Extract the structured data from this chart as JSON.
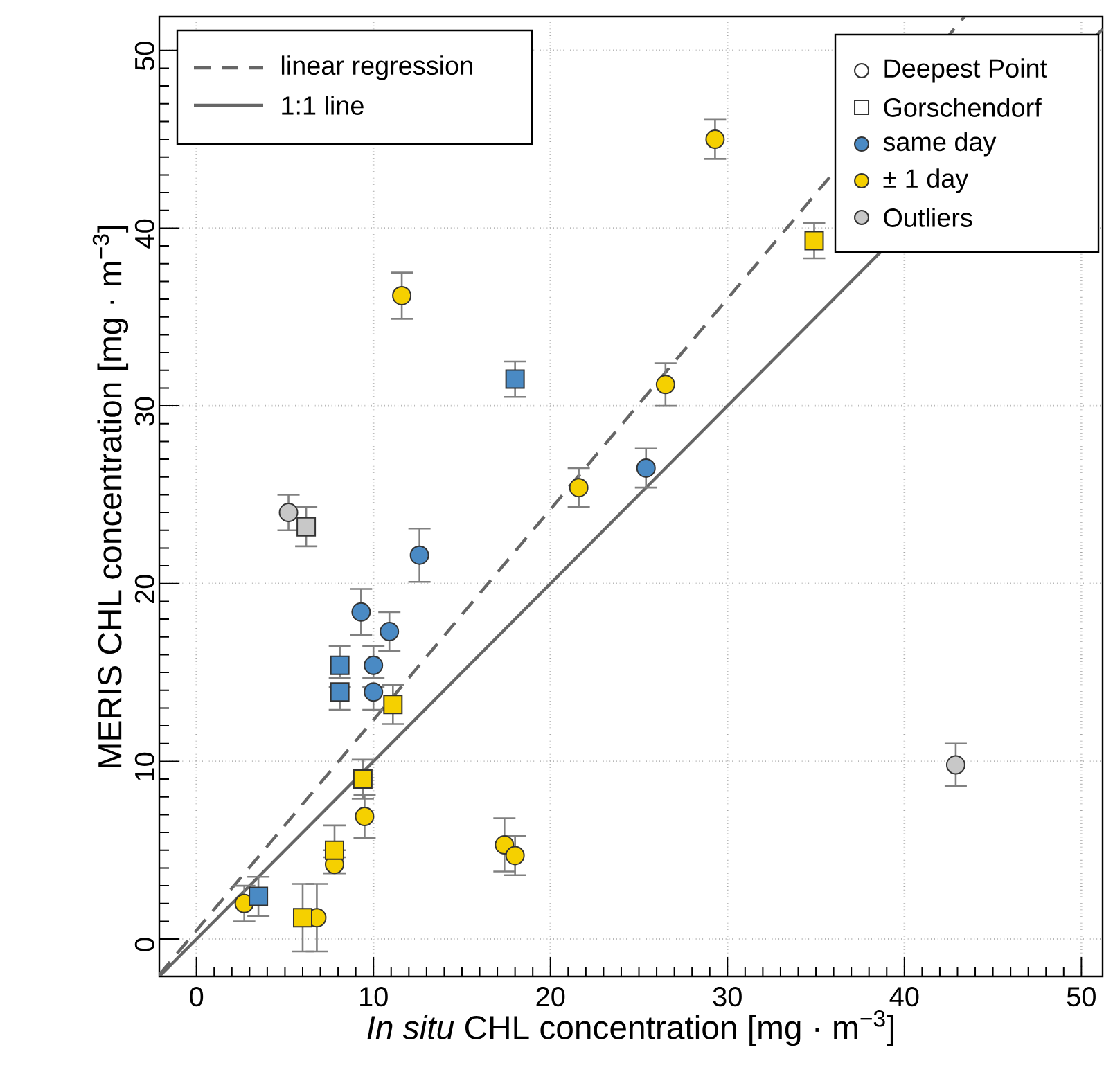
{
  "chart_data": {
    "type": "scatter",
    "xlabel": "*In situ* CHL concentration [mg · m$^{−3}$]",
    "ylabel": "MERIS CHL concentration [mg · m$^{−3}$]",
    "xlim": [
      -2.1,
      51.2
    ],
    "ylim": [
      -2.1,
      51.9
    ],
    "xticks": [
      0,
      10,
      20,
      30,
      40,
      50
    ],
    "yticks": [
      0,
      10,
      20,
      30,
      40,
      50
    ],
    "grid": true,
    "legend": "top",
    "annotations": [
      "Deepest Point",
      "Gorschendorf"
    ],
    "series": [
      {
        "name": "linear regression",
        "type": "line",
        "line_style": "dashed",
        "color": "#666666",
        "x": [
          -2.1,
          43.4
        ],
        "values": [
          -2.0,
          51.9
        ]
      },
      {
        "name": "1:1 line",
        "type": "line",
        "line_style": "solid",
        "color": "#666666",
        "x": [
          -2.1,
          51.2
        ],
        "values": [
          -2.1,
          51.2
        ]
      },
      {
        "name": "same day",
        "marker": "circle",
        "color": "#4a8ac4",
        "x": [
          12.6,
          9.3,
          10.9,
          10.0,
          10.0,
          25.4
        ],
        "values": [
          21.6,
          18.4,
          17.3,
          15.4,
          13.9,
          26.5
        ],
        "errors": [
          1.5,
          1.3,
          1.1,
          [
            14.7,
            16.5
          ],
          [
            12.9,
            14.2
          ],
          1.1
        ]
      },
      {
        "name": "± 1 day",
        "marker": "circle",
        "color": "#f5d000",
        "x": [
          9.5,
          7.8,
          2.7,
          6.8,
          11.6,
          26.5,
          21.6,
          17.4,
          18.0,
          29.3
        ],
        "values": [
          6.9,
          4.2,
          2.0,
          1.2,
          36.2,
          31.2,
          25.4,
          5.3,
          4.7,
          45.0
        ],
        "errors": [
          1.2,
          [
            3.7,
            4.6
          ],
          1.0,
          1.9,
          1.3,
          1.2,
          1.1,
          1.5,
          1.1,
          1.1
        ]
      },
      {
        "name": "Outliers",
        "marker": "circle",
        "color": "#c8c8c8",
        "x": [
          5.2,
          42.9
        ],
        "values": [
          24.0,
          9.8
        ],
        "errors": [
          1.0,
          1.2
        ]
      },
      {
        "marker": "square",
        "color": "#4a8ac4",
        "x": [
          8.1,
          8.1,
          3.5,
          18.0
        ],
        "values": [
          15.4,
          13.9,
          2.4,
          31.5
        ],
        "errors": [
          [
            14.7,
            16.5
          ],
          [
            12.9,
            14.2
          ],
          1.1,
          1.0
        ]
      },
      {
        "marker": "square",
        "color": "#f5d000",
        "x": [
          11.1,
          9.4,
          7.8,
          6.0,
          34.9
        ],
        "values": [
          13.2,
          9.0,
          5.0,
          1.2,
          39.3
        ],
        "errors": [
          1.1,
          1.1,
          [
            5.0,
            6.4
          ],
          1.9,
          1.0
        ]
      },
      {
        "marker": "square",
        "color": "#c8c8c8",
        "x": [
          6.2
        ],
        "values": [
          23.2
        ],
        "errors": [
          1.1
        ]
      }
    ]
  }
}
